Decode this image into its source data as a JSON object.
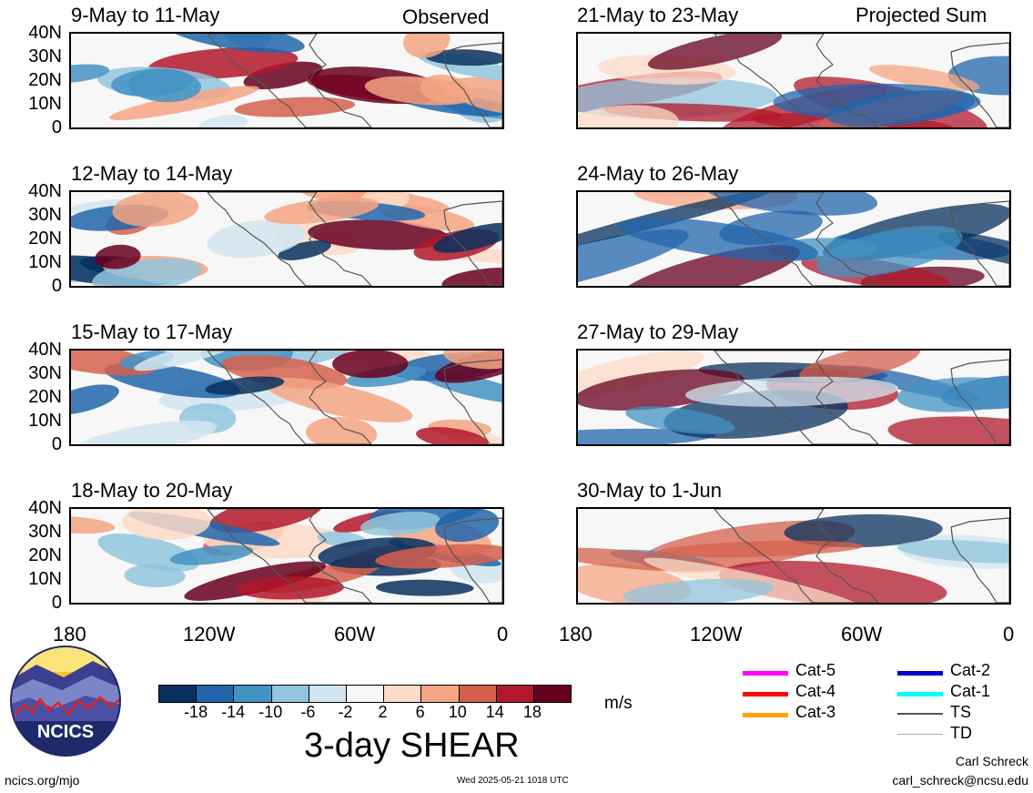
{
  "panels": [
    {
      "title": "9-May to 11-May",
      "tag": "Observed",
      "type": "observed"
    },
    {
      "title": "12-May to 14-May",
      "tag": "",
      "type": "observed"
    },
    {
      "title": "15-May to 17-May",
      "tag": "",
      "type": "observed"
    },
    {
      "title": "18-May to 20-May",
      "tag": "",
      "type": "observed"
    },
    {
      "title": "21-May to 23-May",
      "tag": "Projected Sum",
      "type": "projected"
    },
    {
      "title": "24-May to 26-May",
      "tag": "",
      "type": "projected"
    },
    {
      "title": "27-May to 29-May",
      "tag": "",
      "type": "projected"
    },
    {
      "title": "30-May to 1-Jun",
      "tag": "",
      "type": "projected"
    }
  ],
  "chart_data": {
    "type": "heatmap",
    "title": "3-day SHEAR",
    "units": "m/s",
    "y_ticks": [
      "40N",
      "30N",
      "20N",
      "10N",
      "0"
    ],
    "x_ticks": [
      "180",
      "120W",
      "60W",
      "0"
    ],
    "colorbar": {
      "tick_labels": [
        "-18",
        "-14",
        "-10",
        "-6",
        "-2",
        "2",
        "6",
        "10",
        "14",
        "18"
      ],
      "colors": [
        "#08305e",
        "#2166ac",
        "#4393c3",
        "#92c5de",
        "#d1e5f0",
        "#f7f7f7",
        "#fddbc7",
        "#f4a582",
        "#d6604d",
        "#b2182b",
        "#67001f"
      ]
    }
  },
  "legend": [
    {
      "label": "Cat-5",
      "color": "#ff00ff"
    },
    {
      "label": "Cat-4",
      "color": "#ff0000"
    },
    {
      "label": "Cat-3",
      "color": "#ffa500"
    },
    {
      "label": "Cat-2",
      "color": "#0000cd"
    },
    {
      "label": "Cat-1",
      "color": "#00ffff"
    },
    {
      "label": "TS",
      "color": "#555555"
    },
    {
      "label": "TD",
      "color": "#aaaaaa"
    }
  ],
  "logo": {
    "text": "NCICS"
  },
  "footer": {
    "url": "ncics.org/mjo",
    "timestamp": "Wed 2025-05-21 1018 UTC",
    "author": "Carl Schreck",
    "email": "carl_schreck@ncsu.edu"
  }
}
